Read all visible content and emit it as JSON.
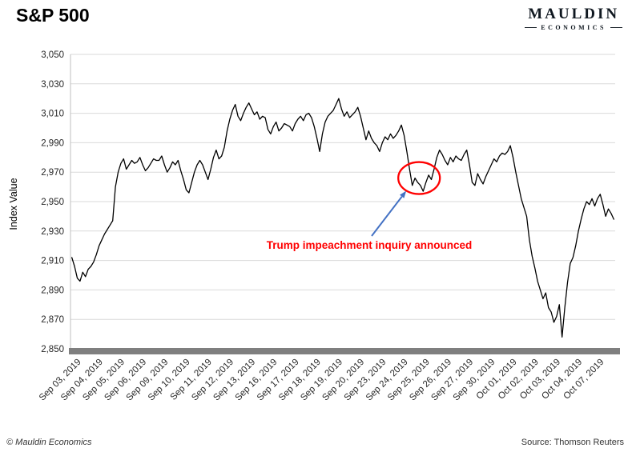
{
  "header": {
    "title": "S&P 500"
  },
  "brand": {
    "name": "MAULDIN",
    "subtitle": "ECONOMICS"
  },
  "footer": {
    "left": "© Mauldin Economics",
    "right": "Source: Thomson Reuters"
  },
  "chart_data": {
    "type": "line",
    "title": "S&P 500",
    "xlabel": "",
    "ylabel": "Index Value",
    "ylim": [
      2850,
      3050
    ],
    "yticks": [
      2850,
      2870,
      2890,
      2910,
      2930,
      2950,
      2970,
      2990,
      3010,
      3030,
      3050
    ],
    "grid": true,
    "legend": "none",
    "line_color": "#000000",
    "grid_color": "#d9d9d9",
    "axis_line_color": "#bfbfbf",
    "axis_bar_color": "#7f7f7f",
    "tick_label_color": "#262626",
    "categories": [
      "Sep 03, 2019",
      "Sep 04, 2019",
      "Sep 05, 2019",
      "Sep 06, 2019",
      "Sep 09, 2019",
      "Sep 10, 2019",
      "Sep 11, 2019",
      "Sep 12, 2019",
      "Sep 13, 2019",
      "Sep 16, 2019",
      "Sep 17, 2019",
      "Sep 18, 2019",
      "Sep 19, 2019",
      "Sep 20, 2019",
      "Sep 23, 2019",
      "Sep 24, 2019",
      "Sep 25, 2019",
      "Sep 26, 2019",
      "Sep 27, 2019",
      "Sep 30, 2019",
      "Oct 01, 2019",
      "Oct 02, 2019",
      "Oct 03, 2019",
      "Oct 04, 2019",
      "Oct 07, 2019"
    ],
    "points_per_day": 8,
    "series": [
      {
        "name": "S&P 500 intraday index value",
        "values": [
          2912,
          2906,
          2898,
          2896,
          2902,
          2899,
          2904,
          2906,
          2909,
          2914,
          2920,
          2924,
          2928,
          2931,
          2934,
          2937,
          2960,
          2970,
          2976,
          2979,
          2972,
          2975,
          2978,
          2976,
          2977,
          2980,
          2975,
          2971,
          2973,
          2976,
          2979,
          2978,
          2978,
          2981,
          2975,
          2970,
          2973,
          2977,
          2975,
          2978,
          2971,
          2965,
          2958,
          2956,
          2963,
          2970,
          2975,
          2978,
          2975,
          2970,
          2965,
          2972,
          2980,
          2985,
          2979,
          2981,
          2987,
          2998,
          3006,
          3012,
          3016,
          3008,
          3005,
          3010,
          3014,
          3017,
          3013,
          3009,
          3011,
          3006,
          3008,
          3007,
          2999,
          2996,
          3001,
          3004,
          2998,
          3000,
          3003,
          3002,
          3001,
          2998,
          3003,
          3006,
          3008,
          3005,
          3009,
          3010,
          3007,
          3001,
          2993,
          2984,
          2996,
          3004,
          3008,
          3010,
          3012,
          3016,
          3020,
          3013,
          3008,
          3011,
          3007,
          3009,
          3011,
          3014,
          3008,
          3000,
          2992,
          2998,
          2993,
          2990,
          2988,
          2984,
          2990,
          2994,
          2992,
          2996,
          2993,
          2995,
          2998,
          3002,
          2995,
          2984,
          2972,
          2961,
          2966,
          2963,
          2961,
          2957,
          2963,
          2968,
          2965,
          2972,
          2980,
          2985,
          2982,
          2978,
          2975,
          2980,
          2977,
          2981,
          2979,
          2978,
          2982,
          2985,
          2975,
          2963,
          2961,
          2969,
          2965,
          2962,
          2967,
          2971,
          2975,
          2979,
          2977,
          2981,
          2983,
          2982,
          2984,
          2988,
          2980,
          2970,
          2961,
          2952,
          2946,
          2940,
          2924,
          2913,
          2905,
          2896,
          2890,
          2884,
          2888,
          2878,
          2875,
          2868,
          2872,
          2880,
          2858,
          2878,
          2895,
          2908,
          2912,
          2920,
          2930,
          2938,
          2945,
          2950,
          2948,
          2952,
          2947,
          2952,
          2955,
          2948,
          2940,
          2945,
          2942,
          2938
        ]
      }
    ],
    "annotation": {
      "text": "Trump impeachment inquiry announced",
      "text_color": "#ff0000",
      "arrow_color": "#4472c4",
      "circle_color": "#ff0000",
      "circle_day_index": 16.0,
      "circle_value": 2966
    }
  }
}
